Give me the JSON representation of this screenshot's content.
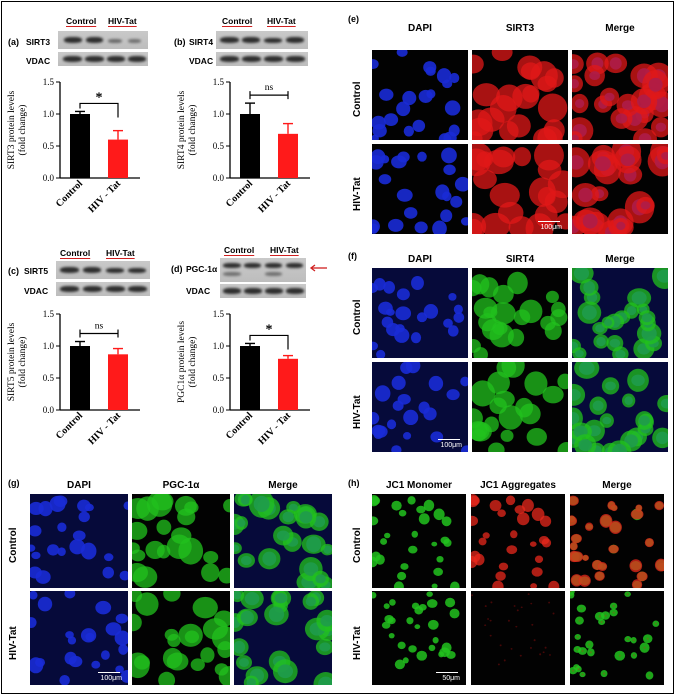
{
  "panel_letters": {
    "a": "(a)",
    "b": "(b)",
    "c": "(c)",
    "d": "(d)",
    "e": "(e)",
    "f": "(f)",
    "g": "(g)",
    "h": "(h)"
  },
  "groups": {
    "control": "Control",
    "hivtat": "HIV-Tat"
  },
  "blots": {
    "a": {
      "target": "SIRT3",
      "loading": "VDAC"
    },
    "b": {
      "target": "SIRT4",
      "loading": "VDAC"
    },
    "c": {
      "target": "SIRT5",
      "loading": "VDAC"
    },
    "d": {
      "target": "PGC-1α",
      "loading": "VDAC"
    }
  },
  "microscopy": {
    "e": {
      "columns": [
        "DAPI",
        "SIRT3",
        "Merge"
      ],
      "rows": [
        "Control",
        "HIV-Tat"
      ],
      "scale": "100μm"
    },
    "f": {
      "columns": [
        "DAPI",
        "SIRT4",
        "Merge"
      ],
      "rows": [
        "Control",
        "HIV-Tat"
      ],
      "scale": "100μm"
    },
    "g": {
      "columns": [
        "DAPI",
        "PGC-1α",
        "Merge"
      ],
      "rows": [
        "Control",
        "HIV-Tat"
      ],
      "scale": "100μm"
    },
    "h": {
      "columns": [
        "JC1 Monomer",
        "JC1 Aggregates",
        "Merge"
      ],
      "rows": [
        "Control",
        "HIV-Tat"
      ],
      "scale": "50μm"
    }
  },
  "colors": {
    "control_bar": "#000000",
    "hivtat_bar": "#ff1a1a",
    "dapi": "#1a2bd6",
    "sirt3": "#e01818",
    "sirt4": "#22c21e",
    "green": "#20c020"
  },
  "chart_data": [
    {
      "panel": "a",
      "type": "bar",
      "categories": [
        "Control",
        "HIV - Tat"
      ],
      "values": [
        1.0,
        0.6
      ],
      "errors": [
        0.04,
        0.14
      ],
      "ylabel": "SIRT3 protein levels\n(fold change)",
      "ylim": [
        0,
        1.5
      ],
      "yticks": [
        "0.0",
        "0.5",
        "1.0",
        "1.5"
      ],
      "significance": "*"
    },
    {
      "panel": "b",
      "type": "bar",
      "categories": [
        "Control",
        "HIV - Tat"
      ],
      "values": [
        1.0,
        0.69
      ],
      "errors": [
        0.17,
        0.16
      ],
      "ylabel": "SIRT4 protein levels\n(fold change)",
      "ylim": [
        0,
        1.5
      ],
      "yticks": [
        "0.0",
        "0.5",
        "1.0",
        "1.5"
      ],
      "significance": "ns"
    },
    {
      "panel": "c",
      "type": "bar",
      "categories": [
        "Control",
        "HIV - Tat"
      ],
      "values": [
        1.0,
        0.87
      ],
      "errors": [
        0.07,
        0.09
      ],
      "ylabel": "SIRT5 protein levels\n(fold change)",
      "ylim": [
        0,
        1.5
      ],
      "yticks": [
        "0.0",
        "0.5",
        "1.0",
        "1.5"
      ],
      "significance": "ns"
    },
    {
      "panel": "d",
      "type": "bar",
      "categories": [
        "Control",
        "HIV - Tat"
      ],
      "values": [
        1.0,
        0.8
      ],
      "errors": [
        0.04,
        0.05
      ],
      "ylabel": "PGC1α protein levels\n(fold change)",
      "ylim": [
        0,
        1.5
      ],
      "yticks": [
        "0.0",
        "0.5",
        "1.0",
        "1.5"
      ],
      "significance": "*"
    }
  ]
}
